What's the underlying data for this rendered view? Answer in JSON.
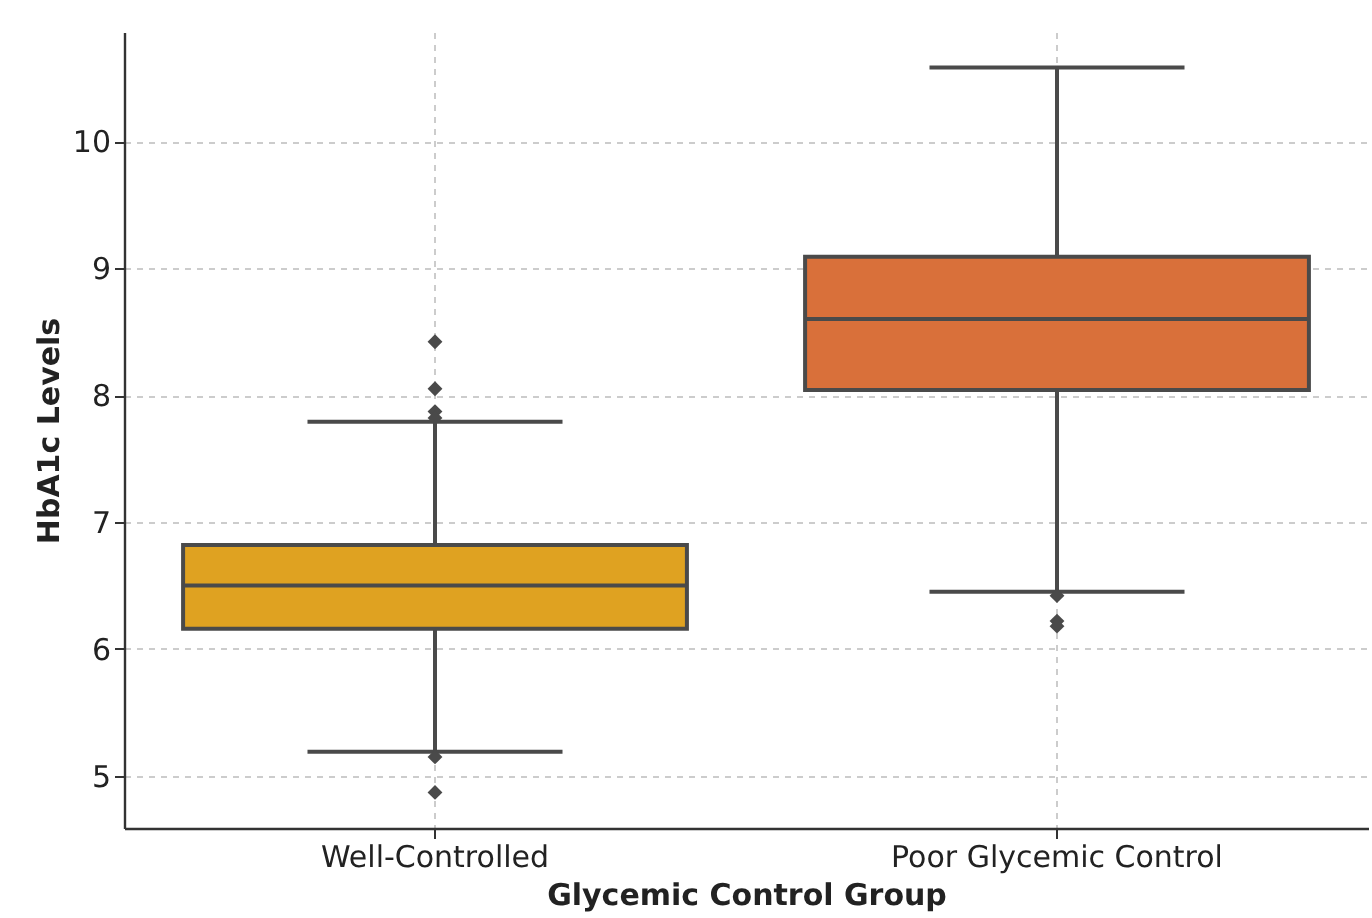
{
  "chart_data": {
    "type": "box",
    "xlabel": "Glycemic Control Group",
    "ylabel": "HbA1c Levels",
    "categories": [
      "Well-Controlled",
      "Poor Glycemic Control"
    ],
    "colors": [
      "#dfa221",
      "#d9703a"
    ],
    "boxes": [
      {
        "low": 5.19,
        "q1": 6.16,
        "median": 6.5,
        "q3": 6.82,
        "high": 7.79,
        "outliers": [
          8.42,
          8.05,
          7.87,
          7.82,
          5.15,
          4.87
        ]
      },
      {
        "low": 6.45,
        "q1": 8.04,
        "median": 8.6,
        "q3": 9.09,
        "high": 10.58,
        "outliers": [
          6.42,
          6.22,
          6.18
        ]
      }
    ],
    "ylim": [
      4.59,
      10.86
    ],
    "yticks": [
      5,
      6,
      7,
      8,
      9,
      10
    ],
    "grid": true
  }
}
